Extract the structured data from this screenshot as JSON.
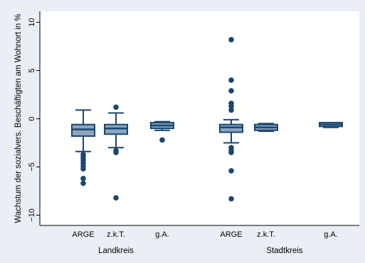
{
  "chart_data": {
    "type": "box",
    "title": "",
    "ylabel": "Wachstum der sozialvers. Beschäftigten am Wohnort in %",
    "ylim": [
      -11,
      11
    ],
    "yticks": [
      -10,
      -5,
      0,
      5,
      10
    ],
    "ytick_labels": [
      "−10",
      "−5",
      "0",
      "5",
      "10"
    ],
    "groups": [
      {
        "label": "Landkreis"
      },
      {
        "label": "Stadtkreis"
      }
    ],
    "boxes": [
      {
        "category": "ARGE",
        "group": "Landkreis",
        "whisker_low": -3.4,
        "q1": -1.8,
        "median": -1.1,
        "q3": -0.6,
        "whisker_high": 0.9,
        "outliers": [
          -3.7,
          -4.0,
          -4.3,
          -4.6,
          -4.9,
          -5.2,
          -6.2,
          -6.7
        ]
      },
      {
        "category": "z.k.T.",
        "group": "Landkreis",
        "whisker_low": -3.0,
        "q1": -1.6,
        "median": -1.0,
        "q3": -0.6,
        "whisker_high": 0.6,
        "outliers": [
          1.2,
          -3.3,
          -3.5,
          -8.2
        ]
      },
      {
        "category": "g.A.",
        "group": "Landkreis",
        "whisker_low": -1.2,
        "q1": -1.0,
        "median": -0.7,
        "q3": -0.4,
        "whisker_high": -0.3,
        "outliers": [
          -2.2
        ]
      },
      {
        "category": "ARGE",
        "group": "Stadtkreis",
        "whisker_low": -2.5,
        "q1": -1.4,
        "median": -0.9,
        "q3": -0.6,
        "whisker_high": -0.1,
        "outliers": [
          8.2,
          4.0,
          2.9,
          1.6,
          1.3,
          0.9,
          -3.0,
          -3.3,
          -3.5,
          -5.4,
          -8.3
        ]
      },
      {
        "category": "z.k.T.",
        "group": "Stadtkreis",
        "whisker_low": -1.3,
        "q1": -1.2,
        "median": -0.9,
        "q3": -0.6,
        "whisker_high": -0.5,
        "outliers": []
      },
      {
        "category": "g.A.",
        "group": "Stadtkreis",
        "whisker_low": -0.9,
        "q1": -0.8,
        "median": -0.6,
        "q3": -0.4,
        "whisker_high": -0.4,
        "outliers": []
      }
    ],
    "colors": {
      "background": "#e9eff4",
      "plot_background": "#ffffff",
      "box_fill": "#8ba4bf",
      "box_stroke": "#1a476f",
      "outlier": "#1a476f"
    }
  }
}
